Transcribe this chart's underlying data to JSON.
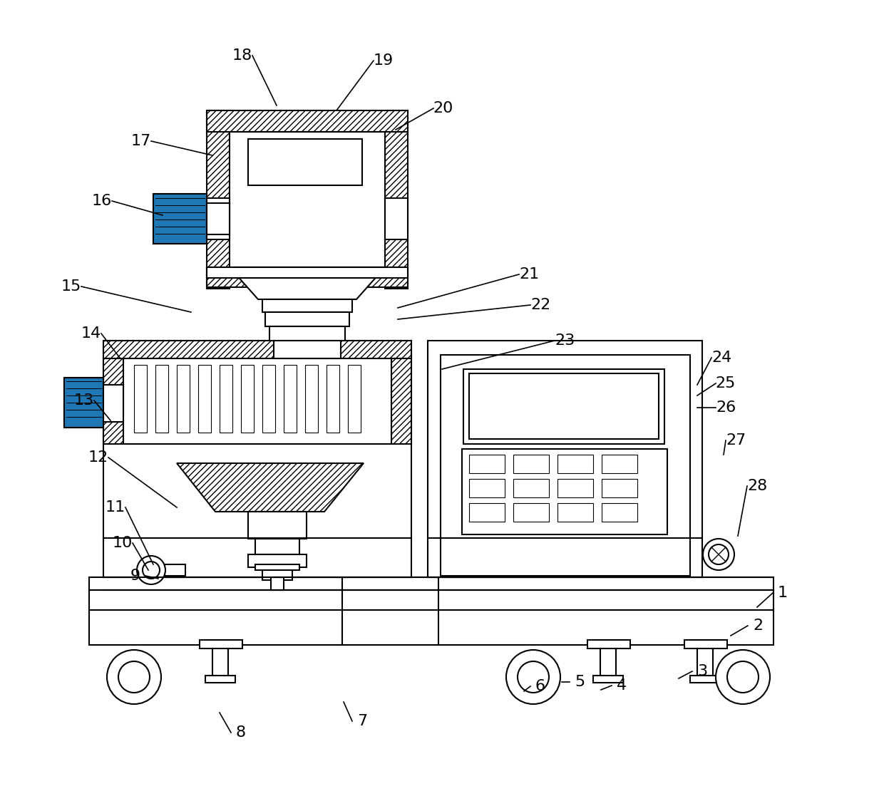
{
  "bg_color": "#ffffff",
  "lw": 1.5,
  "lw_thin": 0.8,
  "lw_ann": 1.2,
  "fs": 16,
  "figsize": [
    12.4,
    11.17
  ],
  "label_positions": {
    "1": [
      1098,
      832,
      1062,
      852
    ],
    "2": [
      1063,
      878,
      1025,
      892
    ],
    "3": [
      985,
      942,
      952,
      952
    ],
    "4": [
      872,
      962,
      843,
      968
    ],
    "5": [
      813,
      957,
      788,
      957
    ],
    "6": [
      758,
      963,
      735,
      970
    ],
    "7": [
      508,
      1012,
      482,
      985
    ],
    "8": [
      338,
      1028,
      308,
      1000
    ],
    "9": [
      190,
      808,
      222,
      812
    ],
    "10": [
      172,
      762,
      208,
      800
    ],
    "11": [
      162,
      712,
      215,
      792
    ],
    "12": [
      138,
      642,
      248,
      712
    ],
    "13": [
      118,
      562,
      155,
      590
    ],
    "14": [
      128,
      468,
      168,
      502
    ],
    "15": [
      100,
      402,
      268,
      438
    ],
    "16": [
      143,
      282,
      228,
      302
    ],
    "17": [
      198,
      198,
      298,
      218
    ],
    "18": [
      340,
      78,
      388,
      148
    ],
    "19": [
      538,
      85,
      472,
      155
    ],
    "20": [
      622,
      152,
      555,
      182
    ],
    "21": [
      742,
      385,
      558,
      432
    ],
    "22": [
      758,
      428,
      558,
      448
    ],
    "23": [
      792,
      478,
      620,
      518
    ],
    "24": [
      1012,
      502,
      978,
      540
    ],
    "25": [
      1018,
      538,
      978,
      555
    ],
    "26": [
      1018,
      572,
      978,
      572
    ],
    "27": [
      1032,
      618,
      1015,
      638
    ],
    "28": [
      1062,
      682,
      1035,
      752
    ]
  }
}
